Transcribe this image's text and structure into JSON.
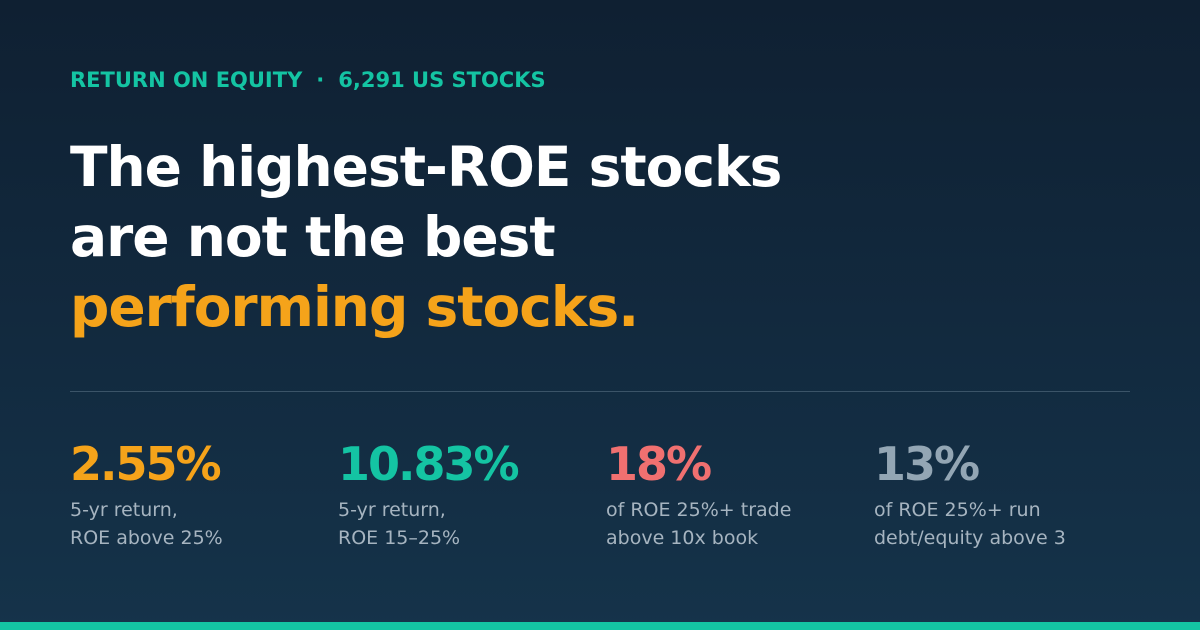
{
  "eyebrow": {
    "topic": "RETURN ON EQUITY",
    "separator": "·",
    "count": "6,291 US STOCKS"
  },
  "headline": {
    "line1": "The highest-ROE stocks",
    "line2": "are not the best",
    "line3": "performing stocks."
  },
  "stats": [
    {
      "value": "2.55%",
      "desc1": "5-yr return,",
      "desc2": "ROE above 25%",
      "color": "#f5a31a"
    },
    {
      "value": "10.83%",
      "desc1": "5-yr return,",
      "desc2": "ROE 15–25%",
      "color": "#14c4a3"
    },
    {
      "value": "18%",
      "desc1": "of ROE 25%+ trade",
      "desc2": "above 10x book",
      "color": "#f07070"
    },
    {
      "value": "13%",
      "desc1": "of ROE 25%+ run",
      "desc2": "debt/equity above 3",
      "color": "#93a6b4"
    }
  ],
  "colors": {
    "accent_teal": "#14c4a3",
    "accent_orange": "#f5a31a",
    "background": "#122a3f"
  }
}
